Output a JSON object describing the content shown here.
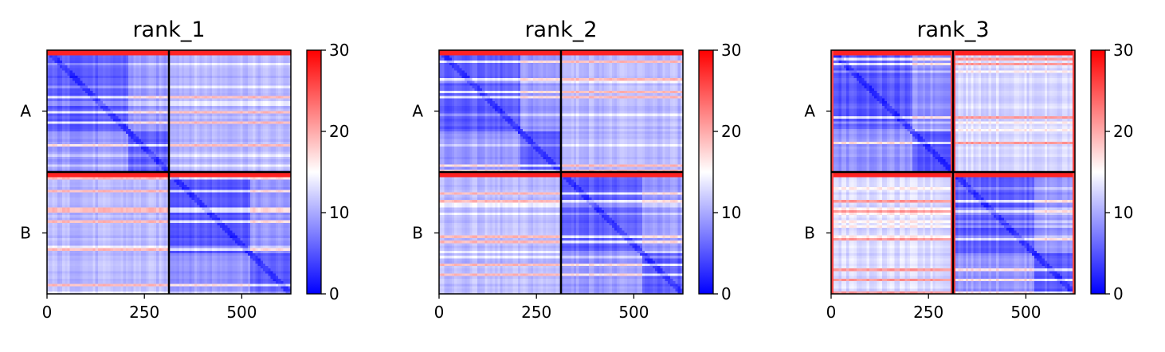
{
  "chart_data": {
    "type": "heatmap",
    "colormap": [
      "#0000ff",
      "#ffffff",
      "#ff0000"
    ],
    "panels": [
      {
        "title": "rank_1",
        "xticks": [
          0,
          250,
          500
        ],
        "xlim": [
          0,
          626
        ],
        "ytick_labels": [
          "A",
          "B"
        ],
        "chain_boundary": 313,
        "domain_boundary": 208,
        "colorbar": {
          "min": 0,
          "max": 30,
          "ticks": [
            0,
            10,
            20,
            30
          ]
        }
      },
      {
        "title": "rank_2",
        "xticks": [
          0,
          250,
          500
        ],
        "xlim": [
          0,
          626
        ],
        "ytick_labels": [
          "A",
          "B"
        ],
        "chain_boundary": 313,
        "domain_boundary": 208,
        "colorbar": {
          "min": 0,
          "max": 30,
          "ticks": [
            0,
            10,
            20,
            30
          ]
        }
      },
      {
        "title": "rank_3",
        "xticks": [
          0,
          250,
          500
        ],
        "xlim": [
          0,
          626
        ],
        "ytick_labels": [
          "A",
          "B"
        ],
        "chain_boundary": 313,
        "domain_boundary": 208,
        "colorbar": {
          "min": 0,
          "max": 30,
          "ticks": [
            0,
            10,
            20,
            30
          ]
        }
      }
    ]
  }
}
